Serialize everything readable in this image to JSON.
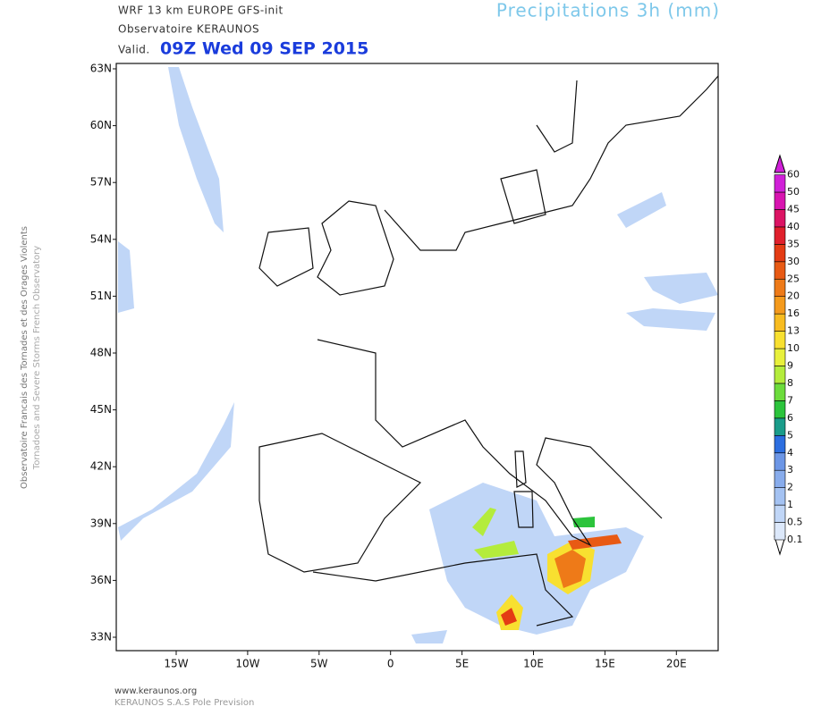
{
  "header": {
    "model": "WRF 13 km EUROPE  GFS-init",
    "source": "Observatoire KERAUNOS",
    "valid_prefix": "Valid.",
    "valid_time": "09Z Wed 09 SEP 2015",
    "title": "Precipitations 3h (mm)"
  },
  "side": {
    "line1": "Observatoire Francais des Tornades et des Orages Violents",
    "line2": "Tornadoes and Severe Storms French Observatory"
  },
  "lat_labels": [
    "63N",
    "60N",
    "57N",
    "54N",
    "51N",
    "48N",
    "45N",
    "42N",
    "39N",
    "36N",
    "33N"
  ],
  "lon_labels": [
    "15W",
    "10W",
    "5W",
    "0",
    "5E",
    "10E",
    "15E",
    "20E"
  ],
  "colorbar": {
    "levels": [
      0.1,
      0.5,
      1,
      2,
      3,
      4,
      5,
      6,
      7,
      8,
      9,
      10,
      13,
      16,
      20,
      25,
      30,
      35,
      40,
      45,
      50,
      60
    ],
    "colors": [
      "#dce8fa",
      "#c0d6f7",
      "#a4c2f2",
      "#88acec",
      "#6c96e6",
      "#2c6ee0",
      "#1a9c8a",
      "#2cc43c",
      "#6cdc3c",
      "#b4ec3c",
      "#e8f03c",
      "#f8e030",
      "#f8bc20",
      "#f49a1c",
      "#ee7a18",
      "#e85a14",
      "#e43c14",
      "#e0202c",
      "#dc1464",
      "#d814b0",
      "#d020d8"
    ]
  },
  "footer": {
    "url": "www.keraunos.org",
    "company": "KERAUNOS S.A.S Pole Prevision"
  }
}
